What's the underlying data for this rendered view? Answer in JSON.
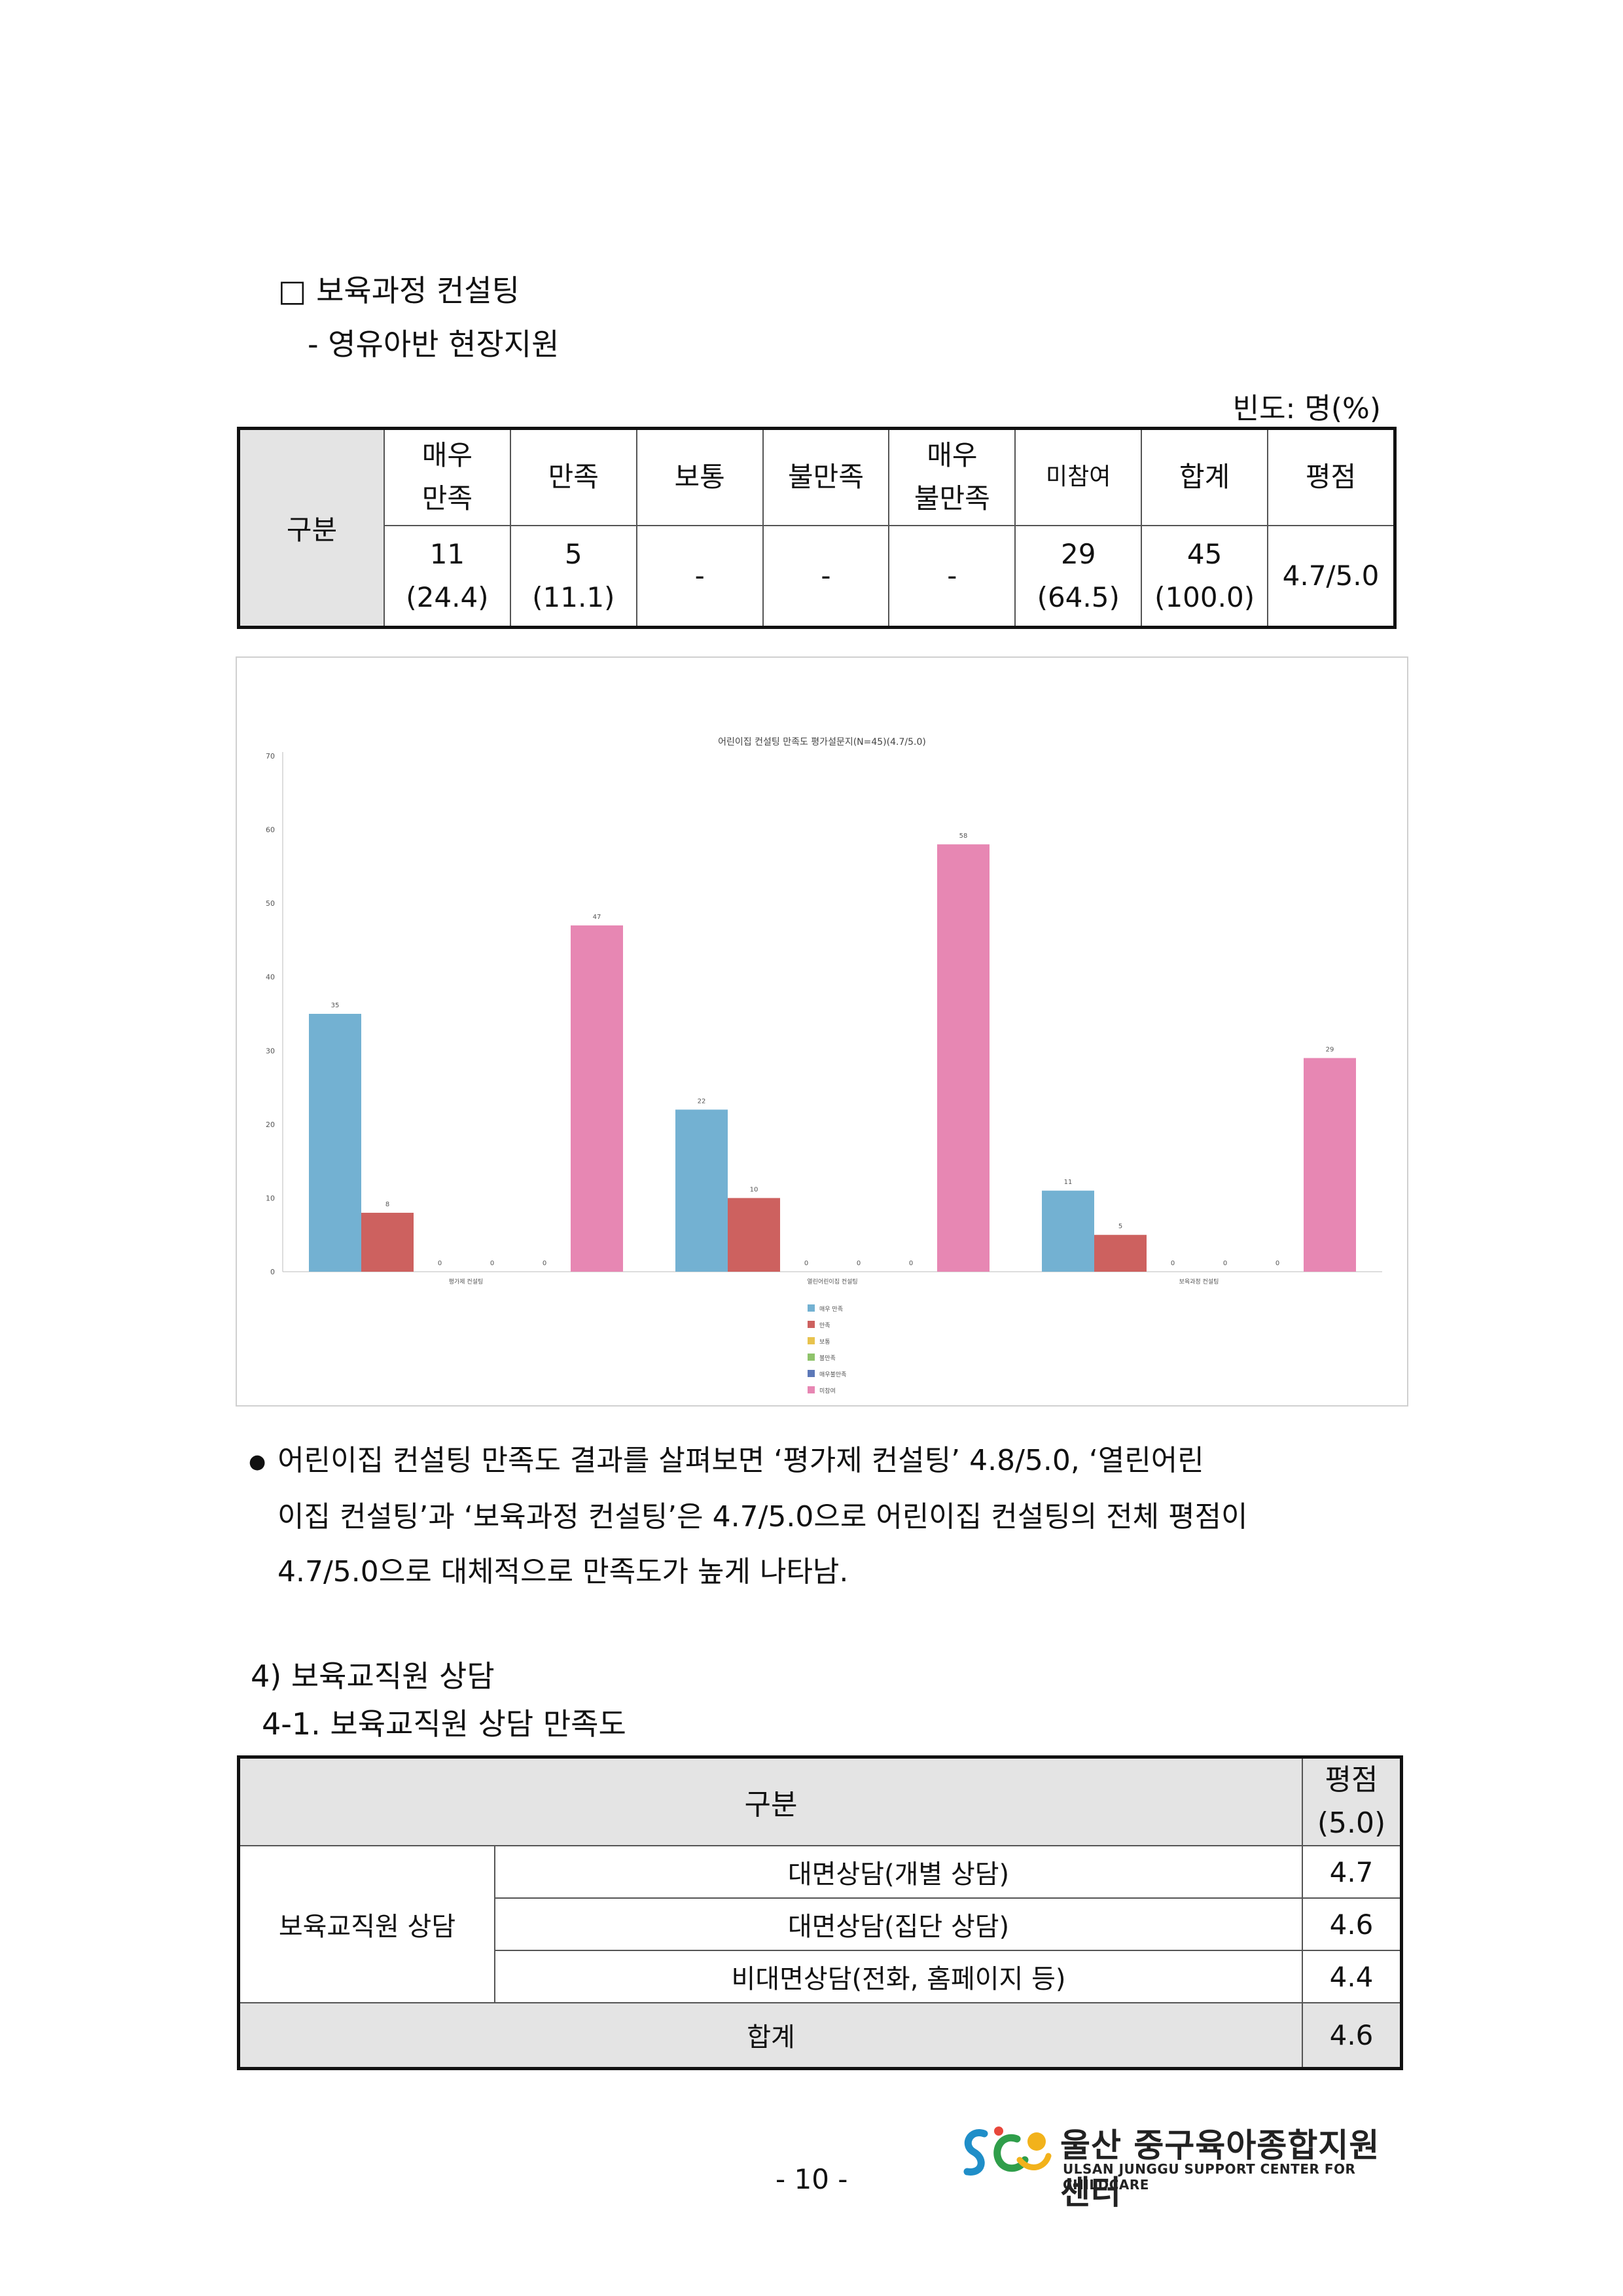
{
  "heading": {
    "title": "□ 보육과정 컨설팅",
    "subtitle": "- 영유아반 현장지원"
  },
  "table1": {
    "unit": "빈도: 명(%)",
    "row_label": "구분",
    "headers": [
      "매우\n만족",
      "만족",
      "보통",
      "불만족",
      "매우\n불만족",
      "미참여",
      "합계",
      "평점"
    ],
    "counts": [
      "11",
      "5",
      "-",
      "-",
      "-",
      "29",
      "45"
    ],
    "percents": [
      "(24.4)",
      "(11.1)",
      "",
      "",
      "",
      "(64.5)",
      "(100.0)"
    ],
    "score": "4.7/5.0"
  },
  "chart_data": {
    "type": "bar",
    "title": "어린이집 컨설팅 만족도 평가설문지(N=45)(4.7/5.0)",
    "categories": [
      "평가제 컨설팅",
      "열린어린이집 컨설팅",
      "보육과정 컨설팅"
    ],
    "series": [
      {
        "name": "매우 만족",
        "color": "#73b1d2",
        "values": [
          35,
          22,
          11
        ]
      },
      {
        "name": "만족",
        "color": "#cd615f",
        "values": [
          8,
          10,
          5
        ]
      },
      {
        "name": "보통",
        "color": "#e8c34e",
        "values": [
          0,
          0,
          0
        ]
      },
      {
        "name": "불만족",
        "color": "#8fc36b",
        "values": [
          0,
          0,
          0
        ]
      },
      {
        "name": "매우불만족",
        "color": "#5c78b8",
        "values": [
          0,
          0,
          0
        ]
      },
      {
        "name": "미참여",
        "color": "#e787b3",
        "values": [
          47,
          58,
          29
        ]
      }
    ],
    "ylim": [
      0,
      70
    ],
    "yticks": [
      0,
      10,
      20,
      30,
      40,
      50,
      60,
      70
    ],
    "legend_position": "bottom-center",
    "grid": false
  },
  "bullet": {
    "marker": "●",
    "lines": [
      "어린이집 컨설팅 만족도 결과를 살펴보면 ‘평가제 컨설팅’ 4.8/5.0, ‘열린어린",
      "이집 컨설팅’과 ‘보육과정 컨설팅’은 4.7/5.0으로 어린이집 컨설팅의 전체 평점이",
      "4.7/5.0으로 대체적으로 만족도가 높게 나타남."
    ]
  },
  "section4": {
    "title": "4) 보육교직원 상담",
    "subtitle": "4-1. 보육교직원 상담 만족도"
  },
  "table2": {
    "header_label": "구분",
    "header_score": "평점\n(5.0)",
    "group": "보육교직원 상담",
    "rows": [
      {
        "label": "대면상담(개별 상담)",
        "score": "4.7"
      },
      {
        "label": "대면상담(집단 상담)",
        "score": "4.6"
      },
      {
        "label": "비대면상담(전화, 홈페이지 등)",
        "score": "4.4"
      }
    ],
    "total_label": "합계",
    "total_score": "4.6"
  },
  "footer": {
    "page_number": "- 10 -",
    "logo_ko": "울산 중구육아종합지원센터",
    "logo_en": "ULSAN JUNGGU SUPPORT CENTER FOR CHILDCARE"
  }
}
